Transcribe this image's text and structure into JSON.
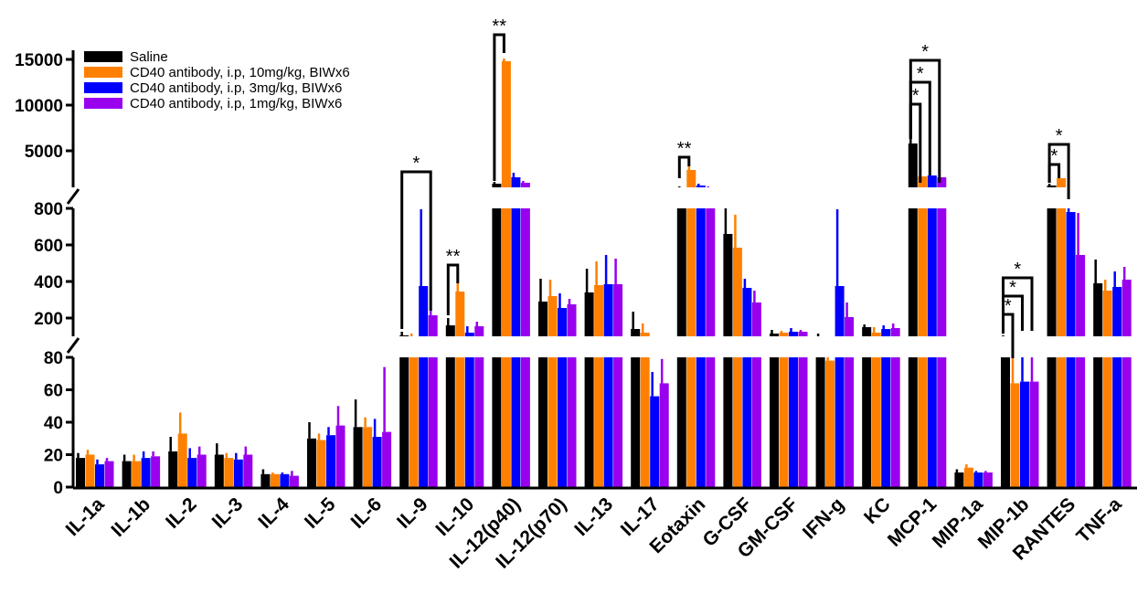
{
  "chart_data": {
    "type": "bar",
    "colors": {
      "Saline": "#000000",
      "CD40 antibody, i.p, 10mg/kg, BIWx6": "#ff8000",
      "CD40 antibody, i.p, 3mg/kg, BIWx6": "#0000ff",
      "CD40 antibody, i.p, 1mg/kg, BIWx6": "#9900ee"
    },
    "axis_breaks": {
      "segments": [
        {
          "range": [
            0,
            80
          ],
          "ticks": [
            0,
            20,
            40,
            60,
            80
          ]
        },
        {
          "range": [
            80,
            800
          ],
          "ticks": [
            200,
            400,
            600,
            800
          ]
        },
        {
          "range": [
            800,
            16000
          ],
          "ticks": [
            5000,
            10000,
            15000
          ]
        }
      ]
    },
    "legend": {
      "position": "top-left",
      "entries": [
        "Saline",
        "CD40 antibody, i.p, 10mg/kg, BIWx6",
        "CD40 antibody, i.p, 3mg/kg, BIWx6",
        "CD40 antibody, i.p, 1mg/kg, BIWx6"
      ]
    },
    "categories": [
      "IL-1a",
      "IL-1b",
      "IL-2",
      "IL-3",
      "IL-4",
      "IL-5",
      "IL-6",
      "IL-9",
      "IL-10",
      "IL-12(p40)",
      "IL-12(p70)",
      "IL-13",
      "IL-17",
      "Eotaxin",
      "G-CSF",
      "GM-CSF",
      "IFN-g",
      "KC",
      "MCP-1",
      "MIP-1a",
      "MIP-1b",
      "RANTES",
      "TNF-a"
    ],
    "series": [
      {
        "name": "Saline",
        "values": [
          18,
          16,
          22,
          20,
          8,
          30,
          37,
          105,
          160,
          1400,
          290,
          340,
          140,
          1000,
          660,
          115,
          95,
          150,
          5800,
          9,
          95,
          1200,
          390
        ],
        "errors": [
          3,
          4,
          9,
          7,
          3,
          10,
          17,
          20,
          40,
          200,
          125,
          130,
          95,
          100,
          140,
          20,
          20,
          15,
          2900,
          2,
          10,
          200,
          130
        ]
      },
      {
        "name": "CD40 antibody, i.p, 10mg/kg, BIWx6",
        "values": [
          20,
          16,
          33,
          18,
          8,
          29,
          37,
          100,
          345,
          14800,
          320,
          380,
          120,
          2900,
          585,
          120,
          78,
          120,
          2200,
          12,
          64,
          2000,
          350
        ],
        "errors": [
          3,
          4,
          13,
          3,
          1,
          4,
          6,
          15,
          75,
          300,
          90,
          130,
          50,
          500,
          180,
          10,
          3,
          30,
          1200,
          2,
          20,
          500,
          60
        ]
      },
      {
        "name": "CD40 antibody, i.p, 3mg/kg, BIWx6",
        "values": [
          14,
          18,
          18,
          17,
          8,
          32,
          31,
          375,
          120,
          2100,
          255,
          385,
          56,
          1200,
          365,
          125,
          375,
          140,
          2300,
          9,
          65,
          780,
          370
        ],
        "errors": [
          3,
          4,
          6,
          4,
          1,
          5,
          11,
          420,
          35,
          500,
          80,
          160,
          15,
          200,
          50,
          20,
          420,
          20,
          700,
          1,
          15,
          100,
          85
        ]
      },
      {
        "name": "CD40 antibody, i.p, 1mg/kg, BIWx6",
        "values": [
          16,
          19,
          20,
          20,
          7,
          38,
          34,
          215,
          155,
          1500,
          275,
          385,
          64,
          1000,
          285,
          125,
          205,
          145,
          2100,
          9,
          65,
          545,
          410
        ],
        "errors": [
          2,
          3,
          5,
          5,
          3,
          12,
          40,
          55,
          25,
          200,
          30,
          140,
          15,
          100,
          65,
          10,
          80,
          25,
          1400,
          1,
          15,
          230,
          70
        ]
      }
    ],
    "significance": [
      {
        "category": "IL-9",
        "label": "*"
      },
      {
        "category": "IL-10",
        "label": "**"
      },
      {
        "category": "IL-12(p40)",
        "label": "**"
      },
      {
        "category": "Eotaxin",
        "label": "**"
      },
      {
        "category": "MCP-1",
        "label": "*"
      },
      {
        "category": "MCP-1",
        "label": "*"
      },
      {
        "category": "MCP-1",
        "label": "*"
      },
      {
        "category": "MIP-1b",
        "label": "*"
      },
      {
        "category": "MIP-1b",
        "label": "*"
      },
      {
        "category": "MIP-1b",
        "label": "*"
      },
      {
        "category": "RANTES",
        "label": "*"
      },
      {
        "category": "RANTES",
        "label": "*"
      }
    ]
  }
}
